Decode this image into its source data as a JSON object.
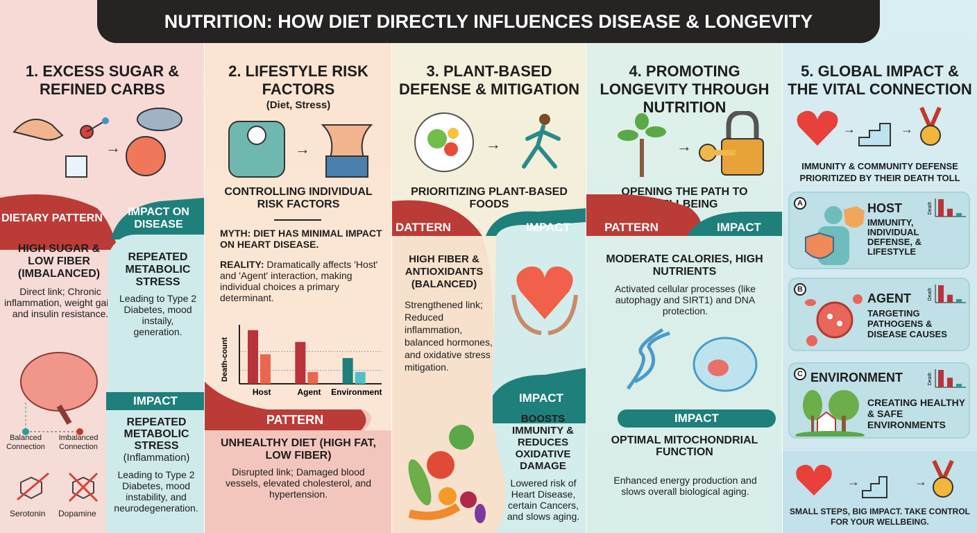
{
  "title": "NUTRITION: HOW DIET DIRECTLY INFLUENCES DISEASE & LONGEVITY",
  "colors": {
    "red": "#bb3b36",
    "teal": "#1f7f7b",
    "dark": "#262323"
  },
  "col1": {
    "heading": "1. EXCESS SUGAR & REFINED CARBS",
    "icons": [
      "hand-sugar-cube-icon",
      "arrow-right-icon",
      "sad-face-cloud-icon"
    ],
    "pattern_label": "DIETARY PATTERN",
    "impact_label": "IMPACT ON DISEASE",
    "pattern_title": "HIGH SUGAR & LOW FIBER (IMBALANCED)",
    "pattern_text": "Direct link; Chronic inflammation, weight gain, and insulin resistance.",
    "impact_title": "REPEATED METABOLIC STRESS",
    "impact_text": "Leading to Type 2 Diabetes, mood instaily, generation.",
    "balanced": "Balanced Connection",
    "imbalanced": "Imbalanced Connection",
    "serotonin": "Serotonin",
    "dopamine": "Dopamine",
    "impact2_label": "IMPACT",
    "impact2_title": "REPEATED METABOLIC STRESS",
    "impact2_sub": "(Inflammation)",
    "impact2_text": "Leading to Type 2 Diabetes, mood instability, and neurodegeneration."
  },
  "col2": {
    "heading": "2. LIFESTYLE RISK FACTORS",
    "subheading": "(Diet, Stress)",
    "icons": [
      "scale-icon",
      "arrow-right-icon",
      "waist-icon"
    ],
    "section_title": "CONTROLLING INDIVIDUAL RISK FACTORS",
    "myth": "MYTH: DIET HAS MINIMAL IMPACT ON HEART DISEASE.",
    "reality_label": "REALITY:",
    "reality_text": "Dramatically affects 'Host' and 'Agent' interaction, making individual choices a primary determinant.",
    "pattern_label": "PATTERN",
    "pattern_title": "UNHEALTHY DIET (HIGH FAT, LOW FIBER)",
    "pattern_text": "Disrupted link; Damaged blood vessels, elevated cholesterol, and hypertension."
  },
  "chart_data": {
    "type": "bar",
    "ylabel": "Death-count",
    "categories": [
      "Host",
      "Agent",
      "Environment"
    ],
    "series": [
      {
        "values": [
          100,
          78,
          48
        ],
        "colors": [
          "#b8333a",
          "#b8333a",
          "#1f7f7b"
        ]
      },
      {
        "values": [
          55,
          22,
          22
        ],
        "colors": [
          "#e9674f",
          "#e9674f",
          "#4fc1c6"
        ]
      }
    ],
    "ylim": [
      0,
      110
    ],
    "gridlines": [
      60,
      25
    ],
    "grid": true
  },
  "col3": {
    "heading": "3. PLANT-BASED DEFENSE & MITIGATION",
    "icons": [
      "salad-bowl-icon",
      "arrow-right-icon",
      "runner-icon"
    ],
    "section_title": "PRIORITIZING PLANT-BASED FOODS",
    "pattern_label": "DATTERN",
    "impact_label": "IMPACT",
    "pattern_title": "HIGH FIBER & ANTIOXIDANTS (BALANCED)",
    "pattern_text": "Strengthened link; Reduced inflammation, balanced hormones, and oxidative stress mitigation.",
    "impact2_label": "IMPACT",
    "impact2_title": "BOOSTS IMMUNITY & REDUCES OXIDATIVE DAMAGE",
    "impact2_text": "Lowered risk of Heart Disease, certain Cancers, and slows aging."
  },
  "col4": {
    "heading": "4. PROMOTING LONGEVITY THROUGH NUTRITION",
    "icons": [
      "tree-icon",
      "arrow-right-icon",
      "key-lock-icon"
    ],
    "section_title": "OPENING THE PATH TO WELLBEING",
    "pattern_label": "PATTERN",
    "impact_label": "IMPACT",
    "pattern_title": "MODERATE CALORIES, HIGH NUTRIENTS",
    "pattern_text": "Activated cellular processes (like autophagy and SIRT1) and DNA protection.",
    "impact2_label": "IMPACT",
    "impact2_title": "OPTIMAL MITOCHONDRIAL FUNCTION",
    "impact2_text": "Enhanced energy production and slows overall biological aging."
  },
  "col5": {
    "heading": "5. GLOBAL IMPACT & THE VITAL CONNECTION",
    "icons": [
      "heart-icon",
      "arrow-right-icon",
      "stairs-icon",
      "arrow-right-icon",
      "medal-icon"
    ],
    "section_title": "IMMUNITY & COMMUNITY DEFENSE",
    "section_sub": "Prioritized by their death toll",
    "cards": [
      {
        "letter": "A",
        "title": "HOST",
        "text": "IMMUNITY, INDIVIDUAL DEFENSE, & LIFESTYLE",
        "mini_label": "Death",
        "mini_values": [
          100,
          45,
          20
        ]
      },
      {
        "letter": "B",
        "title": "AGENT",
        "text": "TARGETING PATHOGENS & DISEASE CAUSES",
        "mini_label": "Death",
        "mini_values": [
          100,
          45,
          20
        ]
      },
      {
        "letter": "C",
        "title": "ENVIRONMENT",
        "text": "CREATING HEALTHY & SAFE ENVIRONMENTS",
        "mini_label": "Death",
        "mini_values": [
          100,
          55,
          20
        ]
      }
    ],
    "footer": "SMALL STEPS, BIG IMPACT. TAKE CONTROL FOR YOUR WELLBEING."
  }
}
